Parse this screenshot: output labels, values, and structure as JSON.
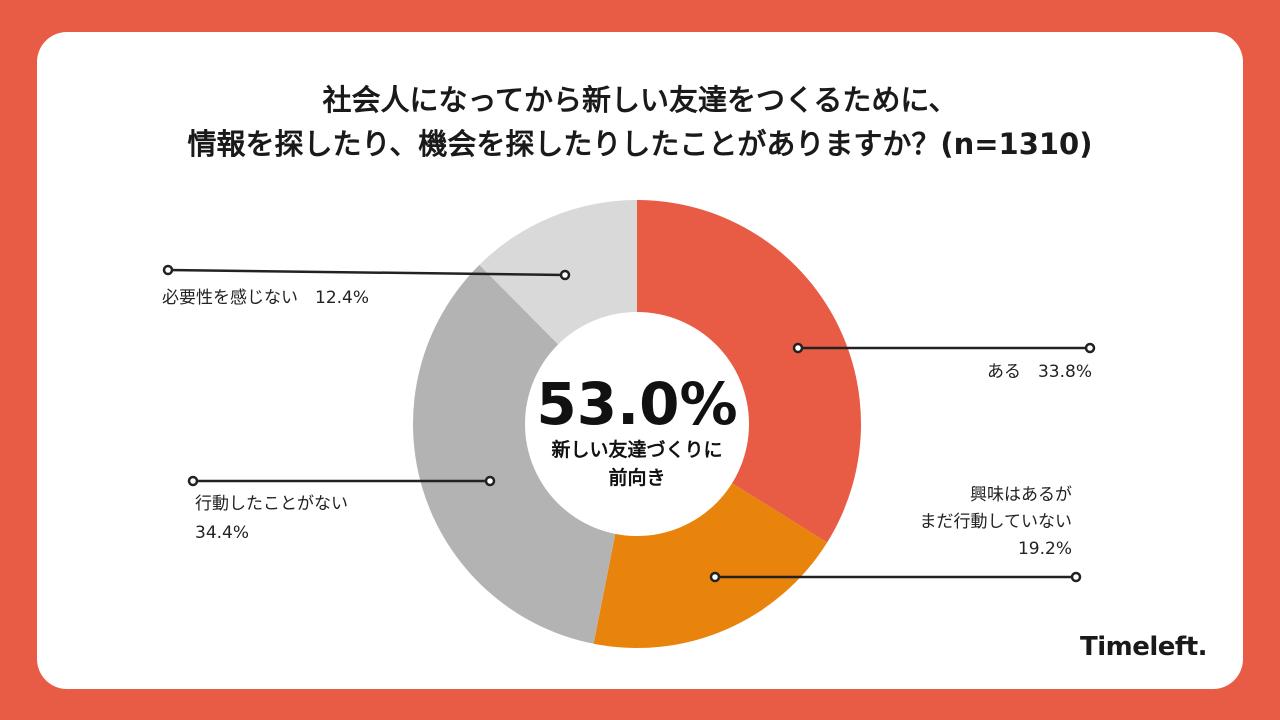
{
  "title_lines": [
    "社会人になってから新しい友達をつくるために、",
    "情報を探したり、機会を探したりしたことがありますか？(n=1310)"
  ],
  "center": {
    "big": "53.0%",
    "line1": "新しい友達づくりに",
    "line2": "前向き"
  },
  "logo": "Timeleft.",
  "colors": {
    "background": "#e85c45",
    "aru": "#e85c45",
    "kyomi": "#e8830c",
    "kodo_nashi": "#b3b3b3",
    "hitsuyo_nashi": "#d9d9d9"
  },
  "chart_data": {
    "type": "pie",
    "donut": true,
    "start": "12 o'clock, clockwise",
    "slices": [
      {
        "label": "ある",
        "value": 33.8,
        "display": "33.8%",
        "color": "#e85c45"
      },
      {
        "label": "興味はあるが まだ行動していない",
        "value": 19.2,
        "display": "19.2%",
        "color": "#e8830c"
      },
      {
        "label": "行動したことがない",
        "value": 34.4,
        "display": "34.4%",
        "color": "#b3b3b3"
      },
      {
        "label": "必要性を感じない",
        "value": 12.4,
        "display": "12.4%",
        "color": "#d9d9d9"
      }
    ],
    "labels_text": {
      "aru": "ある　33.8%",
      "kyomi_line1": "興味はあるが",
      "kyomi_line2": "まだ行動していない",
      "kyomi_value": "19.2%",
      "kodo_line1": "行動したことがない",
      "kodo_value": "34.4%",
      "hitsuyo": "必要性を感じない　12.4%"
    }
  }
}
